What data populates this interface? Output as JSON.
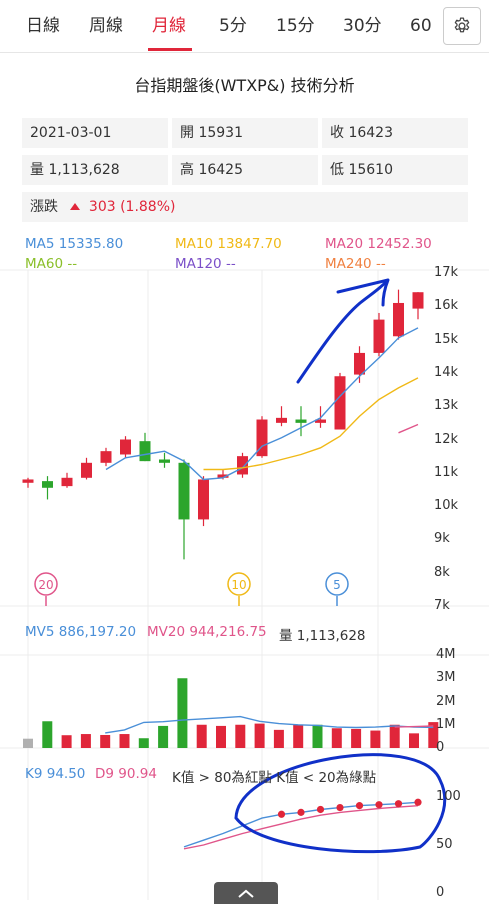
{
  "tabs": [
    "日線",
    "周線",
    "月線",
    "5分",
    "15分",
    "30分",
    "60"
  ],
  "active_tab": "月線",
  "title": "台指期盤後(WTXP&) 技術分析",
  "info": {
    "date": "2021-03-01",
    "open_label": "開",
    "open": "15931",
    "close_label": "收",
    "close": "16423",
    "volume_label": "量",
    "volume": "1,113,628",
    "high_label": "高",
    "high": "16425",
    "low_label": "低",
    "low": "15610",
    "change_label": "漲跌",
    "change": "303 (1.88%)"
  },
  "ma_legend": {
    "ma5": "MA5 15335.80",
    "ma10": "MA10 13847.70",
    "ma20": "MA20 12452.30",
    "ma60": "MA60 --",
    "ma120": "MA120 --",
    "ma240": "MA240 --"
  },
  "price_axis_labels": [
    "17k",
    "16k",
    "15k",
    "14k",
    "13k",
    "12k",
    "11k",
    "10k",
    "9k",
    "8k",
    "7k"
  ],
  "markers": [
    "20",
    "10",
    "5"
  ],
  "volume_legend": {
    "mv5": "MV5 886,197.20",
    "mv20": "MV20 944,216.75",
    "vol": "量 1,113,628"
  },
  "volume_axis_labels": [
    "4M",
    "3M",
    "2M",
    "1M",
    "0"
  ],
  "kd_legend": {
    "k": "K9 94.50",
    "d": "D9 90.94",
    "note": "K值 > 80為紅點 K值 < 20為綠點"
  },
  "kd_axis_labels": [
    "100",
    "50",
    "0"
  ],
  "colors": {
    "up": "#e0263a",
    "down": "#2ca52c",
    "ma5": "#4a8fd8",
    "ma10": "#f0b917",
    "ma20": "#e0558a",
    "ma60": "#8abf2a",
    "ma120": "#7a4fc8",
    "ma240": "#f08040",
    "annotation": "#1030c8"
  },
  "chart_data": {
    "type": "candlestick",
    "ylim": [
      7000,
      17000
    ],
    "candles": [
      {
        "o": 10700,
        "h": 10850,
        "l": 10550,
        "c": 10800
      },
      {
        "o": 10750,
        "h": 10900,
        "l": 10200,
        "c": 10550
      },
      {
        "o": 10600,
        "h": 11000,
        "l": 10550,
        "c": 10850
      },
      {
        "o": 10850,
        "h": 11450,
        "l": 10800,
        "c": 11300
      },
      {
        "o": 11300,
        "h": 11750,
        "l": 11200,
        "c": 11650
      },
      {
        "o": 11550,
        "h": 12100,
        "l": 11450,
        "c": 12000
      },
      {
        "o": 11950,
        "h": 12200,
        "l": 11350,
        "c": 11350
      },
      {
        "o": 11400,
        "h": 11600,
        "l": 11150,
        "c": 11300
      },
      {
        "o": 11300,
        "h": 11400,
        "l": 8400,
        "c": 9600
      },
      {
        "o": 9600,
        "h": 10900,
        "l": 9400,
        "c": 10800
      },
      {
        "o": 10850,
        "h": 11100,
        "l": 10800,
        "c": 10950
      },
      {
        "o": 10950,
        "h": 11600,
        "l": 10850,
        "c": 11500
      },
      {
        "o": 11500,
        "h": 12700,
        "l": 11450,
        "c": 12600
      },
      {
        "o": 12500,
        "h": 13000,
        "l": 12400,
        "c": 12650
      },
      {
        "o": 12600,
        "h": 13000,
        "l": 12100,
        "c": 12500
      },
      {
        "o": 12500,
        "h": 13000,
        "l": 12350,
        "c": 12600
      },
      {
        "o": 12300,
        "h": 14000,
        "l": 12300,
        "c": 13900
      },
      {
        "o": 13950,
        "h": 14800,
        "l": 13700,
        "c": 14600
      },
      {
        "o": 14600,
        "h": 15800,
        "l": 14500,
        "c": 15600
      },
      {
        "o": 15100,
        "h": 16500,
        "l": 15000,
        "c": 16100
      },
      {
        "o": 15931,
        "h": 16425,
        "l": 15610,
        "c": 16423
      }
    ],
    "ma5": [
      [
        4,
        11100
      ],
      [
        5,
        11450
      ],
      [
        6,
        11550
      ],
      [
        7,
        11650
      ],
      [
        8,
        11350
      ],
      [
        9,
        10800
      ],
      [
        10,
        10850
      ],
      [
        11,
        11150
      ],
      [
        12,
        11800
      ],
      [
        13,
        12050
      ],
      [
        14,
        12350
      ],
      [
        15,
        12650
      ],
      [
        16,
        13300
      ],
      [
        17,
        13900
      ],
      [
        18,
        14450
      ],
      [
        19,
        15050
      ],
      [
        20,
        15350
      ]
    ],
    "ma10": [
      [
        9,
        11100
      ],
      [
        10,
        11100
      ],
      [
        11,
        11150
      ],
      [
        12,
        11250
      ],
      [
        13,
        11400
      ],
      [
        14,
        11550
      ],
      [
        15,
        11750
      ],
      [
        16,
        12100
      ],
      [
        17,
        12700
      ],
      [
        18,
        13200
      ],
      [
        19,
        13550
      ],
      [
        20,
        13850
      ]
    ],
    "ma20": [
      [
        19,
        12200
      ],
      [
        20,
        12450
      ]
    ],
    "volume_ylim": [
      0,
      4000000
    ],
    "volume": [
      400000,
      1150000,
      550000,
      600000,
      560000,
      600000,
      420000,
      950000,
      3000000,
      1000000,
      950000,
      1000000,
      1050000,
      780000,
      1000000,
      1000000,
      850000,
      820000,
      750000,
      1000000,
      630000,
      1113628
    ],
    "volume_up": [
      false,
      false,
      true,
      true,
      true,
      true,
      false,
      false,
      false,
      true,
      true,
      true,
      true,
      true,
      true,
      false,
      true,
      true,
      true,
      true,
      true,
      true
    ],
    "volume_gray_first": true,
    "mv5": [
      [
        4,
        650000
      ],
      [
        5,
        780000
      ],
      [
        6,
        1100000
      ],
      [
        7,
        1130000
      ],
      [
        8,
        1200000
      ],
      [
        9,
        1250000
      ],
      [
        10,
        1300000
      ],
      [
        11,
        1350000
      ],
      [
        12,
        1150000
      ],
      [
        13,
        1050000
      ],
      [
        14,
        1000000
      ],
      [
        15,
        970000
      ],
      [
        16,
        900000
      ],
      [
        17,
        880000
      ],
      [
        18,
        900000
      ],
      [
        19,
        950000
      ],
      [
        20,
        900000
      ],
      [
        21,
        886197
      ]
    ],
    "mv20": [
      [
        19,
        900000
      ],
      [
        20,
        920000
      ],
      [
        21,
        944217
      ]
    ],
    "kd_ylim": [
      0,
      110
    ],
    "k": [
      [
        8,
        48
      ],
      [
        9,
        55
      ],
      [
        10,
        62
      ],
      [
        11,
        70
      ],
      [
        12,
        78
      ],
      [
        13,
        82
      ],
      [
        14,
        84
      ],
      [
        15,
        87
      ],
      [
        16,
        89
      ],
      [
        17,
        91
      ],
      [
        18,
        92
      ],
      [
        19,
        93
      ],
      [
        20,
        94.5
      ]
    ],
    "d": [
      [
        8,
        46
      ],
      [
        9,
        50
      ],
      [
        10,
        56
      ],
      [
        11,
        62
      ],
      [
        12,
        67
      ],
      [
        13,
        72
      ],
      [
        14,
        77
      ],
      [
        15,
        81
      ],
      [
        16,
        84
      ],
      [
        17,
        86
      ],
      [
        18,
        88
      ],
      [
        19,
        89.5
      ],
      [
        20,
        90.94
      ]
    ]
  }
}
